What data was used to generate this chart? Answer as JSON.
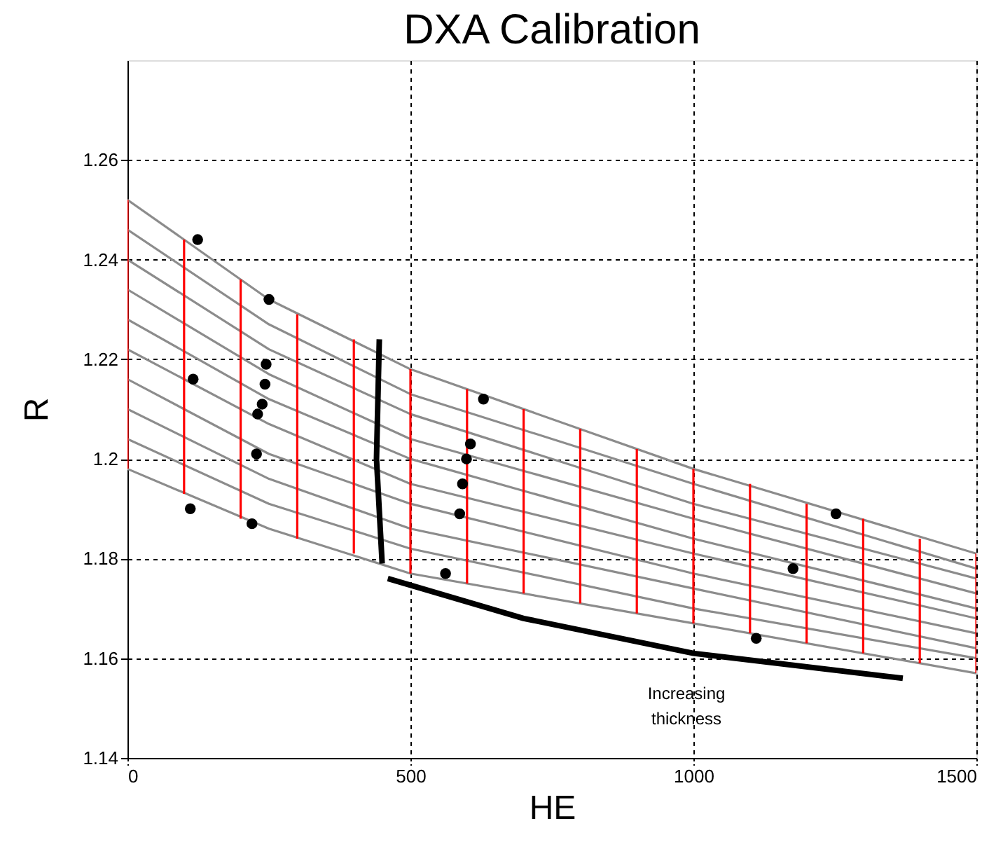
{
  "chart_data": {
    "type": "line",
    "title": "DXA Calibration",
    "xlabel": "HE",
    "ylabel": "R",
    "xlim": [
      0,
      1500
    ],
    "xticks": [
      0,
      500,
      1000,
      1500
    ],
    "ylim": [
      1.14,
      1.28
    ],
    "yticks": [
      1.14,
      1.16,
      1.18,
      1.2,
      1.22,
      1.24,
      1.26
    ],
    "grid": true,
    "line_style": "solid",
    "marker": "none",
    "annotations": [
      "Increasing thickness"
    ],
    "series": [
      {
        "color": "#8c8c8c",
        "x": [
          0,
          250,
          500,
          1000,
          1500
        ],
        "values": [
          1.252,
          1.232,
          1.218,
          1.198,
          1.181
        ]
      },
      {
        "color": "#8c8c8c",
        "x": [
          0,
          250,
          500,
          1000,
          1500
        ],
        "values": [
          1.246,
          1.227,
          1.213,
          1.195,
          1.178
        ]
      },
      {
        "color": "#8c8c8c",
        "x": [
          0,
          250,
          500,
          1000,
          1500
        ],
        "values": [
          1.24,
          1.222,
          1.209,
          1.191,
          1.176
        ]
      },
      {
        "color": "#8c8c8c",
        "x": [
          0,
          250,
          500,
          1000,
          1500
        ],
        "values": [
          1.234,
          1.217,
          1.204,
          1.188,
          1.173
        ]
      },
      {
        "color": "#8c8c8c",
        "x": [
          0,
          250,
          500,
          1000,
          1500
        ],
        "values": [
          1.228,
          1.212,
          1.2,
          1.184,
          1.17
        ]
      },
      {
        "color": "#8c8c8c",
        "x": [
          0,
          250,
          500,
          1000,
          1500
        ],
        "values": [
          1.222,
          1.207,
          1.195,
          1.181,
          1.168
        ]
      },
      {
        "color": "#8c8c8c",
        "x": [
          0,
          250,
          500,
          1000,
          1500
        ],
        "values": [
          1.216,
          1.201,
          1.191,
          1.177,
          1.165
        ]
      },
      {
        "color": "#8c8c8c",
        "x": [
          0,
          250,
          500,
          1000,
          1500
        ],
        "values": [
          1.21,
          1.196,
          1.186,
          1.174,
          1.162
        ]
      },
      {
        "color": "#8c8c8c",
        "x": [
          0,
          250,
          500,
          1000,
          1500
        ],
        "values": [
          1.204,
          1.191,
          1.182,
          1.17,
          1.16
        ]
      },
      {
        "color": "#8c8c8c",
        "x": [
          0,
          250,
          500,
          1000,
          1500
        ],
        "values": [
          1.198,
          1.186,
          1.177,
          1.167,
          1.157
        ]
      },
      {
        "color": "#ff0000",
        "x": [
          0,
          0
        ],
        "values": [
          1.198,
          1.252
        ]
      },
      {
        "color": "#ff0000",
        "x": [
          100,
          100
        ],
        "values": [
          1.193,
          1.244
        ]
      },
      {
        "color": "#ff0000",
        "x": [
          200,
          200
        ],
        "values": [
          1.188,
          1.236
        ]
      },
      {
        "color": "#ff0000",
        "x": [
          300,
          300
        ],
        "values": [
          1.184,
          1.229
        ]
      },
      {
        "color": "#ff0000",
        "x": [
          400,
          400
        ],
        "values": [
          1.181,
          1.224
        ]
      },
      {
        "color": "#ff0000",
        "x": [
          500,
          500
        ],
        "values": [
          1.177,
          1.218
        ]
      },
      {
        "color": "#ff0000",
        "x": [
          600,
          600
        ],
        "values": [
          1.175,
          1.214
        ]
      },
      {
        "color": "#ff0000",
        "x": [
          700,
          700
        ],
        "values": [
          1.173,
          1.21
        ]
      },
      {
        "color": "#ff0000",
        "x": [
          800,
          800
        ],
        "values": [
          1.171,
          1.206
        ]
      },
      {
        "color": "#ff0000",
        "x": [
          900,
          900
        ],
        "values": [
          1.169,
          1.202
        ]
      },
      {
        "color": "#ff0000",
        "x": [
          1000,
          1000
        ],
        "values": [
          1.167,
          1.198
        ]
      },
      {
        "color": "#ff0000",
        "x": [
          1100,
          1100
        ],
        "values": [
          1.165,
          1.195
        ]
      },
      {
        "color": "#ff0000",
        "x": [
          1200,
          1200
        ],
        "values": [
          1.163,
          1.191
        ]
      },
      {
        "color": "#ff0000",
        "x": [
          1300,
          1300
        ],
        "values": [
          1.161,
          1.188
        ]
      },
      {
        "color": "#ff0000",
        "x": [
          1400,
          1400
        ],
        "values": [
          1.159,
          1.184
        ]
      },
      {
        "color": "#ff0000",
        "x": [
          1500,
          1500
        ],
        "values": [
          1.157,
          1.181
        ]
      },
      {
        "color": "#000000",
        "x": [
          450,
          440,
          445
        ],
        "values": [
          1.179,
          1.2,
          1.224
        ]
      },
      {
        "color": "#000000",
        "x": [
          460,
          700,
          1000,
          1370
        ],
        "values": [
          1.176,
          1.168,
          1.161,
          1.156
        ]
      },
      {
        "type": "scatter",
        "color": "#000000",
        "marker": "circle",
        "x": [
          124,
          250,
          116,
          245,
          243,
          238,
          230,
          228,
          111,
          220,
          629,
          606,
          599,
          592,
          587,
          562,
          1252,
          1176,
          1111
        ],
        "values": [
          1.244,
          1.232,
          1.216,
          1.219,
          1.215,
          1.211,
          1.209,
          1.201,
          1.19,
          1.187,
          1.212,
          1.203,
          1.2,
          1.195,
          1.189,
          1.177,
          1.189,
          1.178,
          1.164
        ]
      }
    ]
  }
}
